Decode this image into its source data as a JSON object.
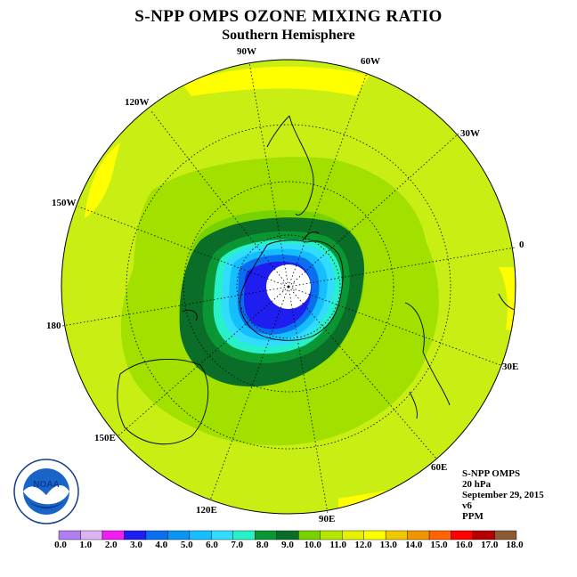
{
  "title": "S-NPP OMPS OZONE MIXING RATIO",
  "subtitle": "Southern Hemisphere",
  "longitude_labels": {
    "lon_90w": "90W",
    "lon_60w": "60W",
    "lon_30w": "30W",
    "lon_0": "0",
    "lon_30e": "30E",
    "lon_60e": "60E",
    "lon_90e": "90E",
    "lon_120e": "120E",
    "lon_150e": "150E",
    "lon_180": "180",
    "lon_150w": "150W",
    "lon_120w": "120W"
  },
  "info": {
    "instrument": "S-NPP OMPS",
    "level": "20 hPa",
    "date": "September 29, 2015",
    "version": "v6",
    "units": "PPM"
  },
  "logo_text": "NOAA",
  "colorbar": {
    "ticks": [
      "0.0",
      "1.0",
      "2.0",
      "3.0",
      "4.0",
      "5.0",
      "6.0",
      "7.0",
      "8.0",
      "9.0",
      "10.0",
      "11.0",
      "12.0",
      "13.0",
      "14.0",
      "15.0",
      "16.0",
      "17.0",
      "18.0"
    ],
    "colors": [
      "#b07ef0",
      "#dcb4f5",
      "#f01ef0",
      "#1e1ef0",
      "#0a6ef0",
      "#0a96f0",
      "#14beff",
      "#32dcff",
      "#28f0c8",
      "#0a9632",
      "#0a6e28",
      "#78d200",
      "#b4e600",
      "#e6f000",
      "#ffff00",
      "#f0c800",
      "#f09600",
      "#ff6400",
      "#ff0000",
      "#b40000",
      "#8c5a32"
    ]
  }
}
